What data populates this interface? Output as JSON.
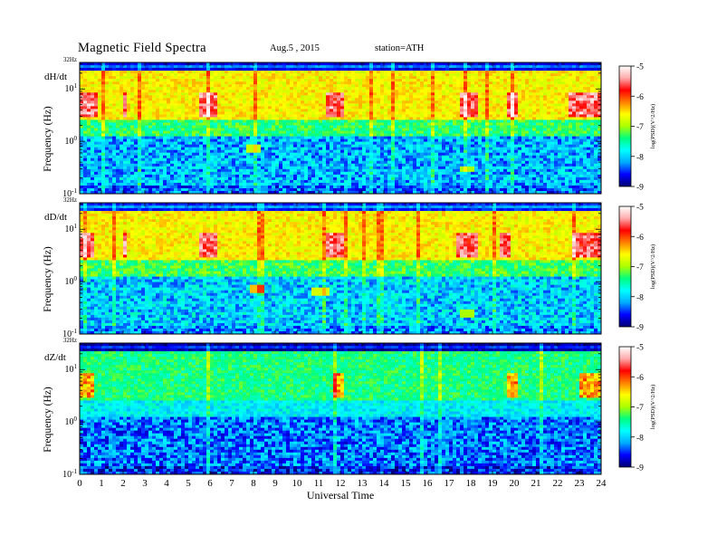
{
  "header": {
    "title": "Magnetic  Field  Spectra",
    "date": "Aug.5  , 2015",
    "station": "station=ATH"
  },
  "colors": {
    "colormap": [
      "#000070",
      "#0000ff",
      "#00aaff",
      "#00ffff",
      "#00ff80",
      "#aaff00",
      "#ffff00",
      "#ff8000",
      "#ff0000",
      "#ffaaaa",
      "#ffffff"
    ],
    "background": "#ffffff",
    "axis": "#000000"
  },
  "chart_data": {
    "type": "heatmap",
    "x": {
      "label": "Universal Time",
      "range": [
        0,
        24
      ],
      "ticks": [
        0,
        1,
        2,
        3,
        4,
        5,
        6,
        7,
        8,
        9,
        10,
        11,
        12,
        13,
        14,
        15,
        16,
        17,
        18,
        19,
        20,
        21,
        22,
        23,
        24
      ],
      "tick_labels": [
        "0",
        "1",
        "2",
        "3",
        "4",
        "5",
        "6",
        "7",
        "8",
        "9",
        "10",
        "11",
        "12",
        "13",
        "14",
        "15",
        "16",
        "17",
        "18",
        "19",
        "20",
        "21",
        "22",
        "23",
        "24"
      ]
    },
    "y": {
      "label": "Frequency  (Hz)",
      "scale": "log",
      "range_hz": [
        0.1,
        32
      ],
      "ticks_hz": [
        0.1,
        1,
        10
      ],
      "tick_labels": [
        {
          "base": "10",
          "exp": "-1"
        },
        {
          "base": "10",
          "exp": "0"
        },
        {
          "base": "10",
          "exp": "1"
        }
      ],
      "top_label": "32Hz"
    },
    "colorbar": {
      "label": "log(PSD)(V^2/Hz)",
      "range": [
        -9,
        -5
      ],
      "ticks": [
        -9,
        -8,
        -7,
        -6,
        -5
      ],
      "tick_labels": [
        "-9",
        "-8",
        "-7",
        "-6",
        "-5"
      ]
    },
    "panels": [
      {
        "name": "dH/dt",
        "background_level": -8.1,
        "sr_bands_level": -6.6,
        "bursts_ut": [
          [
            0,
            0.8
          ],
          [
            2,
            2.2
          ],
          [
            5.5,
            6.3
          ],
          [
            11.3,
            12.2
          ],
          [
            17.5,
            18.3
          ],
          [
            19.7,
            20.2
          ],
          [
            22.5,
            24
          ]
        ],
        "features": [
          {
            "ut": 8.0,
            "freq_hz": 0.75,
            "level": -6.9
          },
          {
            "ut": 17.8,
            "freq_hz": 0.3,
            "level": -7.0
          }
        ]
      },
      {
        "name": "dD/dt",
        "background_level": -8.0,
        "sr_bands_level": -6.6,
        "bursts_ut": [
          [
            0,
            0.7
          ],
          [
            2,
            2.2
          ],
          [
            5.5,
            6.3
          ],
          [
            11.4,
            12.1
          ],
          [
            17.3,
            18.3
          ],
          [
            19.3,
            19.8
          ],
          [
            22.7,
            24
          ]
        ],
        "features": [
          {
            "ut": 8.2,
            "freq_hz": 0.7,
            "level": -6.4
          },
          {
            "ut": 11.1,
            "freq_hz": 0.65,
            "level": -6.8
          },
          {
            "ut": 17.8,
            "freq_hz": 0.25,
            "level": -7.0
          }
        ]
      },
      {
        "name": "dZ/dt",
        "background_level": -8.3,
        "sr_bands_level": -7.4,
        "bursts_ut": [
          [
            0,
            0.6
          ],
          [
            11.7,
            12.2
          ],
          [
            19.7,
            20.2
          ],
          [
            23,
            24
          ]
        ],
        "features": []
      }
    ]
  }
}
